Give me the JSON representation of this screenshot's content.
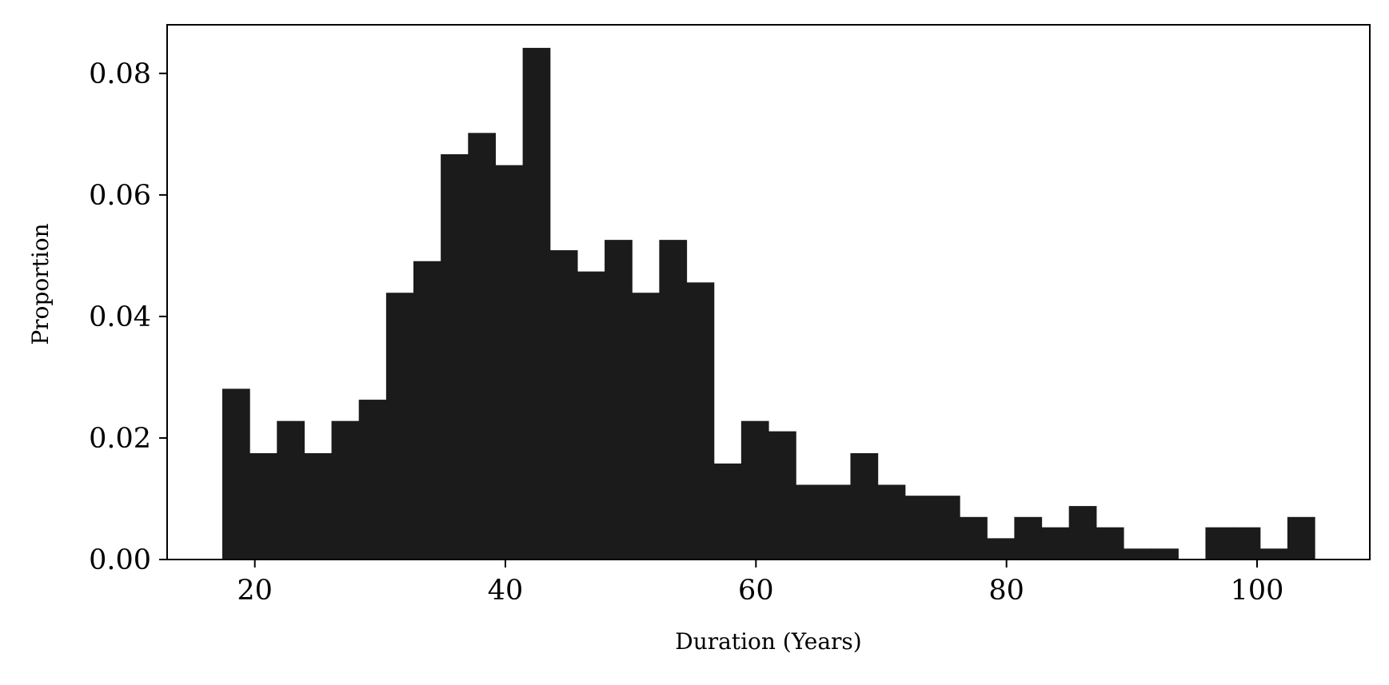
{
  "chart_data": {
    "type": "bar",
    "subtype": "histogram",
    "title": "",
    "xlabel": "Duration (Years)",
    "ylabel": "Proportion",
    "xlim": [
      13,
      109
    ],
    "ylim": [
      0,
      0.088
    ],
    "bar_color": "#1b1b1b",
    "grid": false,
    "legend": "none",
    "x_ticks": [
      {
        "value": 20,
        "label": "20"
      },
      {
        "value": 40,
        "label": "40"
      },
      {
        "value": 60,
        "label": "60"
      },
      {
        "value": 80,
        "label": "80"
      },
      {
        "value": 100,
        "label": "100"
      }
    ],
    "y_ticks": [
      {
        "value": 0,
        "label": "0.00"
      },
      {
        "value": 0.02,
        "label": "0.02"
      },
      {
        "value": 0.04,
        "label": "0.04"
      },
      {
        "value": 0.06,
        "label": "0.06"
      },
      {
        "value": 0.08,
        "label": "0.08"
      }
    ],
    "bin_start": 17.4,
    "bin_width": 2.18,
    "values": [
      0.0281,
      0.0175,
      0.0228,
      0.0175,
      0.0228,
      0.0263,
      0.0439,
      0.0491,
      0.0667,
      0.0702,
      0.0649,
      0.0842,
      0.0509,
      0.0474,
      0.0526,
      0.0439,
      0.0526,
      0.0456,
      0.0158,
      0.0228,
      0.0211,
      0.0123,
      0.0123,
      0.0175,
      0.0123,
      0.0105,
      0.0105,
      0.007,
      0.0035,
      0.007,
      0.0053,
      0.0088,
      0.0053,
      0.0018,
      0.0018,
      0.0,
      0.0053,
      0.0053,
      0.0018,
      0.007
    ]
  }
}
